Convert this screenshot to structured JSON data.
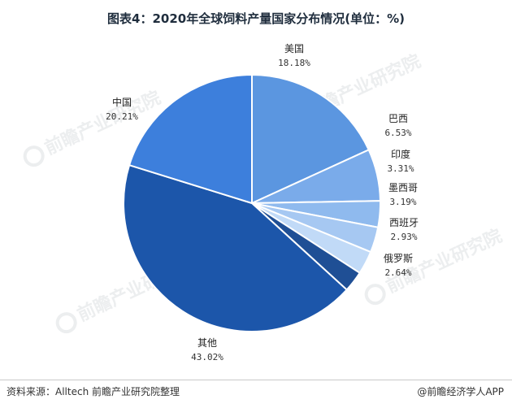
{
  "title": "图表4：2020年全球饲料产量国家分布情况(单位：%)",
  "source": "资料来源：Alltech 前瞻产业研究院整理",
  "brand": "@前瞻经济学人APP",
  "watermark": "前瞻产业研究院",
  "chart_data": {
    "type": "pie",
    "title": "图表4：2020年全球饲料产量国家分布情况(单位：%)",
    "unit": "%",
    "slices": [
      {
        "label": "美国",
        "value": 18.18,
        "display": "18.18%",
        "color": "#5b96e0"
      },
      {
        "label": "巴西",
        "value": 6.53,
        "display": "6.53%",
        "color": "#7aabea"
      },
      {
        "label": "印度",
        "value": 3.31,
        "display": "3.31%",
        "color": "#8fbaee"
      },
      {
        "label": "墨西哥",
        "value": 3.19,
        "display": "3.19%",
        "color": "#a6c8f2"
      },
      {
        "label": "西班牙",
        "value": 2.93,
        "display": "2.93%",
        "color": "#c1daf7"
      },
      {
        "label": "俄罗斯",
        "value": 2.64,
        "display": "2.64%",
        "color": "#1f4f95"
      },
      {
        "label": "其他",
        "value": 43.02,
        "display": "43.02%",
        "color": "#1c56aa"
      },
      {
        "label": "中国",
        "value": 20.21,
        "display": "20.21%",
        "color": "#3d7fdc"
      }
    ]
  }
}
